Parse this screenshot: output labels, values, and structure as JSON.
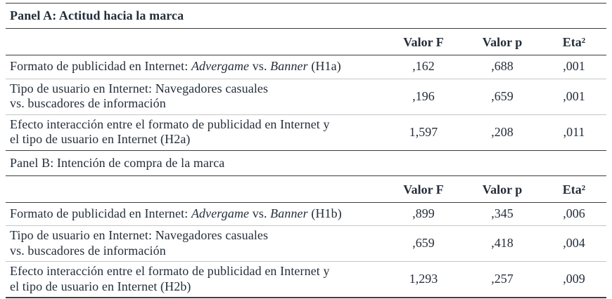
{
  "table": {
    "headers": {
      "col_f": "Valor F",
      "col_p": "Valor p",
      "col_eta": "Eta²"
    },
    "colors": {
      "text": "#242e3a",
      "rule_dark": "#3d3d3d",
      "rule_light": "#c6c6c6",
      "background": "#ffffff"
    },
    "panel_a": {
      "title": "Panel A: Actitud hacia la marca",
      "row1": {
        "pre": "Formato de publicidad en Internet: ",
        "em1": "Advergame",
        "mid": " vs. ",
        "em2": "Banner",
        "post": " (H1a)",
        "f": ",162",
        "p": ",688",
        "eta": ",001"
      },
      "row2": {
        "line1": "Tipo de usuario en Internet: Navegadores casuales",
        "line2": "vs. buscadores de información",
        "f": ",196",
        "p": ",659",
        "eta": ",001"
      },
      "row3": {
        "line1": "Efecto interacción entre el formato de publicidad en Internet y",
        "line2": "el tipo de usuario en Internet (H2a)",
        "f": "1,597",
        "p": ",208",
        "eta": ",011"
      }
    },
    "panel_b": {
      "title": "Panel B: Intención de compra de la marca",
      "row1": {
        "pre": "Formato de publicidad en Internet: ",
        "em1": "Advergame",
        "mid": " vs. ",
        "em2": "Banner",
        "post": " (H1b)",
        "f": ",899",
        "p": ",345",
        "eta": ",006"
      },
      "row2": {
        "line1": "Tipo de usuario en Internet: Navegadores casuales",
        "line2": "vs. buscadores de información",
        "f": ",659",
        "p": ",418",
        "eta": ",004"
      },
      "row3": {
        "line1": "Efecto interacción entre el formato de publicidad en Internet y",
        "line2": "el tipo de usuario en Internet (H2b)",
        "f": "1,293",
        "p": ",257",
        "eta": ",009"
      }
    }
  }
}
